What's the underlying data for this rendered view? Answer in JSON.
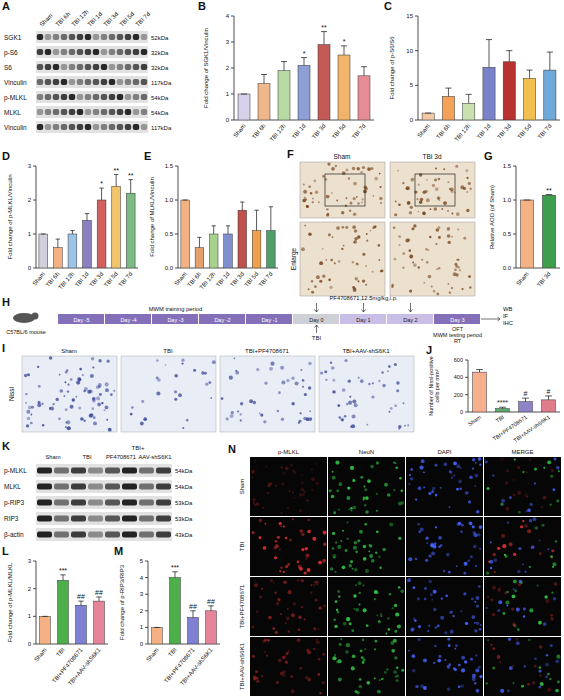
{
  "chart_data": [
    {
      "type": "bar",
      "panel": "B",
      "y_label": "Fold change of SGK1/Vinculin",
      "categories": [
        "Sham",
        "TBI 6h",
        "TBI 12h",
        "TBI 1d",
        "TBI 3d",
        "TBI 5d",
        "TBI 7d"
      ],
      "values": [
        1,
        1.4,
        1.9,
        2.1,
        2.9,
        2.5,
        1.7
      ],
      "errors": [
        0,
        0.35,
        0.35,
        0.3,
        0.5,
        0.35,
        0.35
      ],
      "annotations": [
        null,
        null,
        null,
        "*",
        "**",
        "*",
        null
      ],
      "colors": [
        "#d7d0ea",
        "#f0b78a",
        "#b7dba5",
        "#8e9fd6",
        "#c45a55",
        "#f2b36b",
        "#e58c97"
      ],
      "ylim": [
        0,
        4
      ],
      "yticks": [
        0,
        1,
        2,
        3,
        4
      ]
    },
    {
      "type": "bar",
      "panel": "C",
      "y_label": "Fold change of p-S6/S6",
      "categories": [
        "Sham",
        "TBI 6h",
        "TBI 12h",
        "TBI 1d",
        "TBI 3d",
        "TBI 5d",
        "TBI 7d"
      ],
      "values": [
        1,
        3.4,
        2.4,
        7.6,
        8.4,
        6.0,
        7.2
      ],
      "errors": [
        0,
        1.2,
        1.3,
        4.0,
        1.6,
        1.2,
        2.6
      ],
      "colors": [
        "#f3c9a5",
        "#f4a259",
        "#c9e0b0",
        "#7a83c9",
        "#b8322f",
        "#f1c050",
        "#6fa9d8"
      ],
      "ylim": [
        0,
        15
      ],
      "yticks": [
        0,
        5,
        10,
        15
      ]
    },
    {
      "type": "bar",
      "panel": "D",
      "y_label": "Fold change of p-MLKL/Vinculin",
      "categories": [
        "Sham",
        "TBI 6h",
        "TBI 12h",
        "TBI 1d",
        "TBI 3d",
        "TBI 5d",
        "TBI 7d"
      ],
      "values": [
        1,
        0.6,
        1.0,
        1.4,
        2.0,
        2.4,
        2.2
      ],
      "errors": [
        0,
        0.25,
        0.1,
        0.2,
        0.35,
        0.35,
        0.4
      ],
      "annotations": [
        null,
        null,
        null,
        null,
        "*",
        "**",
        "**"
      ],
      "colors": [
        "#d3d0de",
        "#f4b183",
        "#9dc3e6",
        "#8b7fc2",
        "#d35f5f",
        "#f2c46d",
        "#7dba84"
      ],
      "ylim": [
        0,
        3
      ],
      "yticks": [
        0,
        1,
        2,
        3
      ]
    },
    {
      "type": "bar",
      "panel": "E",
      "y_label": "Fold change of MLKL/Vinculin",
      "categories": [
        "Sham",
        "TBI 6h",
        "TBI 12h",
        "TBI 1d",
        "TBI 3d",
        "TBI 5d",
        "TBI 7d"
      ],
      "values": [
        1,
        0.3,
        0.5,
        0.5,
        0.85,
        0.55,
        0.55
      ],
      "errors": [
        0,
        0.15,
        0.12,
        0.12,
        0.12,
        0.3,
        0.35
      ],
      "colors": [
        "#f4b183",
        "#e7a06b",
        "#a9d18e",
        "#7f8fd0",
        "#c0504d",
        "#f0a04b",
        "#4f9d69"
      ],
      "ylim": [
        0,
        1.5
      ],
      "yticks": [
        {
          "value": 0,
          "label": "0.0"
        },
        0.5,
        {
          "value": 1,
          "label": "1.0"
        },
        1.5
      ]
    },
    {
      "type": "bar",
      "panel": "G",
      "y_label": "Relative AOD (of Sham)",
      "categories": [
        "Sham",
        "TBI 3d"
      ],
      "values": [
        1,
        1.07
      ],
      "errors": [
        0,
        0.01
      ],
      "annotations": [
        null,
        "**"
      ],
      "colors": [
        "#f4b183",
        "#3f9e4d"
      ],
      "ylim": [
        0,
        1.5
      ],
      "yticks": [
        {
          "value": 0,
          "label": "0.0"
        },
        0.5,
        {
          "value": 1,
          "label": "1.0"
        },
        1.5
      ]
    },
    {
      "type": "bar",
      "panel": "J",
      "y_label": "Number of Nissl-positive cells per mm²",
      "categories": [
        "Sham",
        "TBI",
        "TBI+PF4708671",
        "TBI+AAV-shS6K1"
      ],
      "values": [
        460,
        40,
        120,
        140
      ],
      "errors": [
        30,
        15,
        40,
        45
      ],
      "annotations": [
        null,
        "****",
        "#",
        "#"
      ],
      "colors": [
        "#f6b08d",
        "#5aa86b",
        "#8c84c6",
        "#e07b8a"
      ],
      "ylim": [
        0,
        600
      ],
      "yticks": [
        0,
        200,
        400,
        600
      ]
    },
    {
      "type": "bar",
      "panel": "L",
      "y_label": "Fold change of p-MLKL/MLKL",
      "categories": [
        "Sham",
        "TBI",
        "TBI+PF4708671",
        "TBI+AAV-shS6K1"
      ],
      "values": [
        1,
        2.3,
        1.4,
        1.55
      ],
      "errors": [
        0,
        0.2,
        0.15,
        0.15
      ],
      "annotations": [
        null,
        "***",
        "##",
        "##"
      ],
      "colors": [
        "#f4b183",
        "#4daf4a",
        "#7f7fd5",
        "#e6849a"
      ],
      "ylim": [
        0,
        3
      ],
      "yticks": [
        0,
        1,
        2,
        3
      ]
    },
    {
      "type": "bar",
      "panel": "M",
      "y_label": "Fold change of p-RIP3/RIP3",
      "categories": [
        "Sham",
        "TBI",
        "TBI+PF4708671",
        "TBI+AAV-shS6K1"
      ],
      "values": [
        1,
        4.0,
        1.6,
        2.0
      ],
      "errors": [
        0,
        0.35,
        0.4,
        0.3
      ],
      "annotations": [
        null,
        "***",
        "##",
        "##"
      ],
      "colors": [
        "#f4b183",
        "#4daf4a",
        "#7f7fd5",
        "#e6849a"
      ],
      "ylim": [
        0,
        5
      ],
      "yticks": [
        0,
        1,
        2,
        3,
        4,
        5
      ]
    }
  ],
  "blot_A": {
    "panel": "A",
    "lanes": [
      "Sham",
      "TBI 6h",
      "TBI 12h",
      "TBI 1d",
      "TBI 3d",
      "TBI 5d",
      "TBI 7d"
    ],
    "rows": [
      {
        "name": "SGK1",
        "size": "52kDa"
      },
      {
        "name": "p-S6",
        "size": "32kDa"
      },
      {
        "name": "S6",
        "size": "32kDa"
      },
      {
        "name": "Vinculin",
        "size": "117kDa"
      },
      {
        "name": "p-MLKL",
        "size": "54kDa"
      },
      {
        "name": "MLKL",
        "size": "54kDa"
      },
      {
        "name": "Vinculin",
        "size": "117kDa"
      }
    ]
  },
  "histology_F": {
    "panel": "F",
    "columns": [
      "Sham",
      "TBI 3d"
    ],
    "row_label": "Enlarge"
  },
  "timeline_H": {
    "panel": "H",
    "mouse": "C57BL/6 mouse",
    "phase": "MWM training period",
    "days": [
      "Day -5",
      "Day -4",
      "Day -3",
      "Day -2",
      "Day -1",
      "Day 0",
      "Day 1",
      "Day 2",
      "Day 3"
    ],
    "treatment": "PF4708671,12.5mg/kg,i.p.",
    "injury": "TBI",
    "analyses": [
      "WB",
      "IF",
      "IHC"
    ],
    "tests": [
      "OFT",
      "MWM testing period",
      "RT"
    ]
  },
  "histology_I": {
    "panel": "I",
    "stain": "Nissl",
    "columns": [
      "Sham",
      "TBI",
      "TBI+PF4708671",
      "TBI+AAV-shS6K1"
    ]
  },
  "blot_K": {
    "panel": "K",
    "prefix": "TBI+",
    "groups": [
      "Sham",
      "TBI",
      "PF4708671",
      "AAV-shS6K1"
    ],
    "rows": [
      {
        "name": "p-MLKL",
        "size": "54kDa"
      },
      {
        "name": "MLKL",
        "size": "54kDa"
      },
      {
        "name": "p-RIP3",
        "size": "53kDa"
      },
      {
        "name": "RIP3",
        "size": "53kDa"
      },
      {
        "name": "β-actin",
        "size": "43kDa"
      }
    ]
  },
  "fluorescence_N": {
    "panel": "N",
    "columns": [
      "p-MLKL",
      "NeuN",
      "DAPI",
      "MERGE"
    ],
    "rows": [
      "Sham",
      "TBI",
      "TBI+PF4708671",
      "TBI+AAV-shS6K1"
    ]
  }
}
